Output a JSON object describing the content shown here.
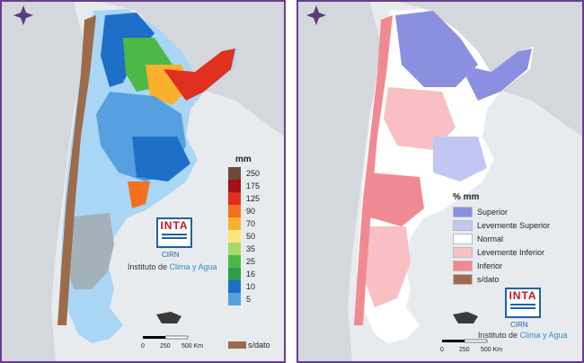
{
  "left_map": {
    "unit_label": "mm",
    "scale_values": [
      "250",
      "175",
      "125",
      "90",
      "70",
      "50",
      "35",
      "25",
      "16",
      "10",
      "5",
      "s/dato"
    ],
    "scale_colors": [
      "#6b4a3a",
      "#a50f15",
      "#e0301e",
      "#f37021",
      "#fbb02d",
      "#fde77a",
      "#a6d96a",
      "#4cb848",
      "#2a9e4a",
      "#1e6fc8",
      "#56a0e0",
      "#a9d6f5"
    ],
    "logo_text": "INTA",
    "logo_sub": "CIRN",
    "institute_prefix": "Instituto de ",
    "institute_highlight": "Clima y Agua",
    "scale_ticks": [
      "0",
      "250",
      "500 Km"
    ],
    "nodata_label": "s/dato"
  },
  "right_map": {
    "unit_label": "% mm",
    "legend_items": [
      {
        "label": "Superior",
        "color": "#8a8fe0"
      },
      {
        "label": "Levemente Superior",
        "color": "#c2c6f2"
      },
      {
        "label": "Normal",
        "color": "#ffffff"
      },
      {
        "label": "Levemente Inferior",
        "color": "#f9c0c4"
      },
      {
        "label": "Inferior",
        "color": "#f08a92"
      },
      {
        "label": "s/dato",
        "color": "#9c6b4a"
      }
    ],
    "logo_text": "INTA",
    "logo_sub": "CIRN",
    "institute_prefix": "Instituto de ",
    "institute_highlight": "Clima y Agua",
    "scale_ticks": [
      "0",
      "250",
      "500 Km"
    ]
  },
  "colors": {
    "frame": "#6a3d8f",
    "land_outside": "#d4d7db",
    "sea": "#e8ebee"
  }
}
